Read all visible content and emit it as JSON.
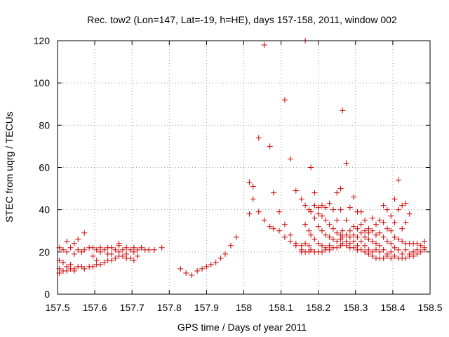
{
  "chart_data": {
    "type": "scatter",
    "title": "Rec. tow2 (Lon=147, Lat=-19, h=HE), days 157-158, 2011, window 002",
    "xlabel": "GPS time / Days of year 2011",
    "ylabel": "STEC from uqrg / TECUs",
    "xlim": [
      157.5,
      158.5
    ],
    "ylim": [
      0,
      120
    ],
    "x_ticks": [
      157.5,
      157.6,
      157.7,
      157.8,
      157.9,
      158.0,
      158.1,
      158.2,
      158.3,
      158.4,
      158.5
    ],
    "x_tick_labels": [
      "157.5",
      "157.6",
      "157.7",
      "157.8",
      "157.9",
      "158",
      "158.1",
      "158.2",
      "158.3",
      "158.4",
      "158.5"
    ],
    "y_ticks": [
      0,
      20,
      40,
      60,
      80,
      100,
      120
    ],
    "y_tick_labels": [
      "0",
      "20",
      "40",
      "60",
      "80",
      "100",
      "120"
    ],
    "grid": true,
    "marker": "+",
    "marker_color": "#cc0000",
    "series": [
      {
        "name": "STEC",
        "points": [
          [
            157.505,
            22
          ],
          [
            157.505,
            16
          ],
          [
            157.505,
            12
          ],
          [
            157.505,
            10
          ],
          [
            157.515,
            21
          ],
          [
            157.515,
            15
          ],
          [
            157.515,
            11
          ],
          [
            157.525,
            25
          ],
          [
            157.525,
            20
          ],
          [
            157.525,
            13
          ],
          [
            157.525,
            11
          ],
          [
            157.535,
            22
          ],
          [
            157.535,
            14
          ],
          [
            157.535,
            12
          ],
          [
            157.545,
            24
          ],
          [
            157.545,
            19
          ],
          [
            157.545,
            12
          ],
          [
            157.545,
            11
          ],
          [
            157.555,
            26
          ],
          [
            157.555,
            21
          ],
          [
            157.555,
            13
          ],
          [
            157.565,
            20
          ],
          [
            157.565,
            13
          ],
          [
            157.572,
            29
          ],
          [
            157.572,
            21
          ],
          [
            157.572,
            12
          ],
          [
            157.585,
            22
          ],
          [
            157.585,
            13
          ],
          [
            157.595,
            22
          ],
          [
            157.595,
            18
          ],
          [
            157.595,
            13
          ],
          [
            157.605,
            21
          ],
          [
            157.605,
            16
          ],
          [
            157.605,
            14
          ],
          [
            157.615,
            22
          ],
          [
            157.615,
            20
          ],
          [
            157.615,
            14
          ],
          [
            157.625,
            21
          ],
          [
            157.625,
            15
          ],
          [
            157.635,
            22
          ],
          [
            157.635,
            19
          ],
          [
            157.635,
            16
          ],
          [
            157.645,
            22
          ],
          [
            157.645,
            19
          ],
          [
            157.645,
            16
          ],
          [
            157.655,
            21
          ],
          [
            157.655,
            17
          ],
          [
            157.665,
            24
          ],
          [
            157.665,
            23
          ],
          [
            157.665,
            20
          ],
          [
            157.665,
            18
          ],
          [
            157.675,
            21
          ],
          [
            157.675,
            18
          ],
          [
            157.685,
            22
          ],
          [
            157.685,
            19
          ],
          [
            157.685,
            17
          ],
          [
            157.695,
            21
          ],
          [
            157.695,
            17
          ],
          [
            157.705,
            22
          ],
          [
            157.705,
            20
          ],
          [
            157.705,
            16
          ],
          [
            157.715,
            21
          ],
          [
            157.715,
            18
          ],
          [
            157.725,
            22
          ],
          [
            157.735,
            21
          ],
          [
            157.745,
            21
          ],
          [
            157.76,
            21
          ],
          [
            157.78,
            22
          ],
          [
            157.83,
            12
          ],
          [
            157.845,
            10
          ],
          [
            157.86,
            9
          ],
          [
            157.875,
            11
          ],
          [
            157.888,
            12
          ],
          [
            157.9,
            13
          ],
          [
            157.912,
            14
          ],
          [
            157.925,
            15
          ],
          [
            157.938,
            17
          ],
          [
            157.95,
            19
          ],
          [
            157.965,
            23
          ],
          [
            157.98,
            27
          ],
          [
            158.015,
            53
          ],
          [
            158.015,
            38
          ],
          [
            158.025,
            51
          ],
          [
            158.025,
            45
          ],
          [
            158.04,
            74
          ],
          [
            158.04,
            39
          ],
          [
            158.055,
            118
          ],
          [
            158.055,
            35
          ],
          [
            158.07,
            70
          ],
          [
            158.07,
            32
          ],
          [
            158.08,
            48
          ],
          [
            158.08,
            31
          ],
          [
            158.095,
            39
          ],
          [
            158.095,
            30
          ],
          [
            158.11,
            92
          ],
          [
            158.11,
            33
          ],
          [
            158.11,
            27
          ],
          [
            158.125,
            64
          ],
          [
            158.125,
            28
          ],
          [
            158.125,
            25
          ],
          [
            158.14,
            49
          ],
          [
            158.14,
            24
          ],
          [
            158.14,
            23
          ],
          [
            158.155,
            45
          ],
          [
            158.155,
            23
          ],
          [
            158.155,
            21
          ],
          [
            158.155,
            20
          ],
          [
            158.165,
            120
          ],
          [
            158.165,
            42
          ],
          [
            158.165,
            33
          ],
          [
            158.165,
            24
          ],
          [
            158.165,
            20
          ],
          [
            158.175,
            40
          ],
          [
            158.175,
            30
          ],
          [
            158.175,
            23
          ],
          [
            158.175,
            20
          ],
          [
            158.18,
            60
          ],
          [
            158.18,
            39
          ],
          [
            158.18,
            28
          ],
          [
            158.18,
            21
          ],
          [
            158.19,
            48
          ],
          [
            158.19,
            42
          ],
          [
            158.19,
            36
          ],
          [
            158.19,
            26
          ],
          [
            158.19,
            20
          ],
          [
            158.2,
            41
          ],
          [
            158.2,
            38
          ],
          [
            158.2,
            32
          ],
          [
            158.2,
            24
          ],
          [
            158.2,
            20
          ],
          [
            158.21,
            42
          ],
          [
            158.21,
            37
          ],
          [
            158.21,
            30
          ],
          [
            158.21,
            23
          ],
          [
            158.21,
            20
          ],
          [
            158.22,
            41
          ],
          [
            158.22,
            35
          ],
          [
            158.22,
            28
          ],
          [
            158.22,
            22
          ],
          [
            158.22,
            21
          ],
          [
            158.23,
            43
          ],
          [
            158.23,
            33
          ],
          [
            158.23,
            27
          ],
          [
            158.23,
            23
          ],
          [
            158.23,
            21
          ],
          [
            158.24,
            40
          ],
          [
            158.24,
            31
          ],
          [
            158.24,
            26
          ],
          [
            158.24,
            22
          ],
          [
            158.25,
            48
          ],
          [
            158.25,
            35
          ],
          [
            158.25,
            29
          ],
          [
            158.25,
            25
          ],
          [
            158.25,
            22
          ],
          [
            158.26,
            50
          ],
          [
            158.26,
            40
          ],
          [
            158.26,
            28
          ],
          [
            158.26,
            26
          ],
          [
            158.26,
            23
          ],
          [
            158.265,
            87
          ],
          [
            158.265,
            30
          ],
          [
            158.265,
            27
          ],
          [
            158.265,
            24
          ],
          [
            158.275,
            62
          ],
          [
            158.275,
            35
          ],
          [
            158.275,
            28
          ],
          [
            158.275,
            25
          ],
          [
            158.275,
            23
          ],
          [
            158.285,
            41
          ],
          [
            158.285,
            30
          ],
          [
            158.285,
            27
          ],
          [
            158.285,
            24
          ],
          [
            158.285,
            22
          ],
          [
            158.295,
            46
          ],
          [
            158.295,
            32
          ],
          [
            158.295,
            28
          ],
          [
            158.295,
            25
          ],
          [
            158.295,
            22
          ],
          [
            158.305,
            39
          ],
          [
            158.305,
            31
          ],
          [
            158.305,
            27
          ],
          [
            158.305,
            23
          ],
          [
            158.305,
            21
          ],
          [
            158.315,
            39
          ],
          [
            158.315,
            33
          ],
          [
            158.315,
            29
          ],
          [
            158.315,
            25
          ],
          [
            158.315,
            21
          ],
          [
            158.325,
            35
          ],
          [
            158.325,
            30
          ],
          [
            158.325,
            27
          ],
          [
            158.325,
            23
          ],
          [
            158.325,
            20
          ],
          [
            158.335,
            31
          ],
          [
            158.335,
            29
          ],
          [
            158.335,
            26
          ],
          [
            158.335,
            21
          ],
          [
            158.335,
            19
          ],
          [
            158.345,
            36
          ],
          [
            158.345,
            30
          ],
          [
            158.345,
            25
          ],
          [
            158.345,
            20
          ],
          [
            158.345,
            18
          ],
          [
            158.355,
            33
          ],
          [
            158.355,
            28
          ],
          [
            158.355,
            24
          ],
          [
            158.355,
            21
          ],
          [
            158.355,
            17
          ],
          [
            158.365,
            35
          ],
          [
            158.365,
            29
          ],
          [
            158.365,
            23
          ],
          [
            158.365,
            20
          ],
          [
            158.365,
            17
          ],
          [
            158.375,
            42
          ],
          [
            158.375,
            34
          ],
          [
            158.375,
            27
          ],
          [
            158.375,
            21
          ],
          [
            158.375,
            17
          ],
          [
            158.385,
            40
          ],
          [
            158.385,
            31
          ],
          [
            158.385,
            25
          ],
          [
            158.385,
            19
          ],
          [
            158.385,
            18
          ],
          [
            158.395,
            37
          ],
          [
            158.395,
            30
          ],
          [
            158.395,
            24
          ],
          [
            158.395,
            20
          ],
          [
            158.395,
            17
          ],
          [
            158.405,
            45
          ],
          [
            158.405,
            34
          ],
          [
            158.405,
            27
          ],
          [
            158.405,
            22
          ],
          [
            158.405,
            18
          ],
          [
            158.415,
            54
          ],
          [
            158.415,
            40
          ],
          [
            158.415,
            26
          ],
          [
            158.415,
            21
          ],
          [
            158.415,
            17
          ],
          [
            158.425,
            42
          ],
          [
            158.425,
            31
          ],
          [
            158.425,
            25
          ],
          [
            158.425,
            19
          ],
          [
            158.425,
            17
          ],
          [
            158.435,
            43
          ],
          [
            158.435,
            34
          ],
          [
            158.435,
            24
          ],
          [
            158.435,
            21
          ],
          [
            158.435,
            17
          ],
          [
            158.445,
            38
          ],
          [
            158.445,
            24
          ],
          [
            158.445,
            19
          ],
          [
            158.445,
            18
          ],
          [
            158.455,
            24
          ],
          [
            158.455,
            20
          ],
          [
            158.455,
            18
          ],
          [
            158.465,
            24
          ],
          [
            158.465,
            21
          ],
          [
            158.465,
            19
          ],
          [
            158.475,
            23
          ],
          [
            158.475,
            20
          ],
          [
            158.485,
            25
          ],
          [
            158.485,
            22
          ],
          [
            158.485,
            21
          ]
        ]
      }
    ]
  }
}
